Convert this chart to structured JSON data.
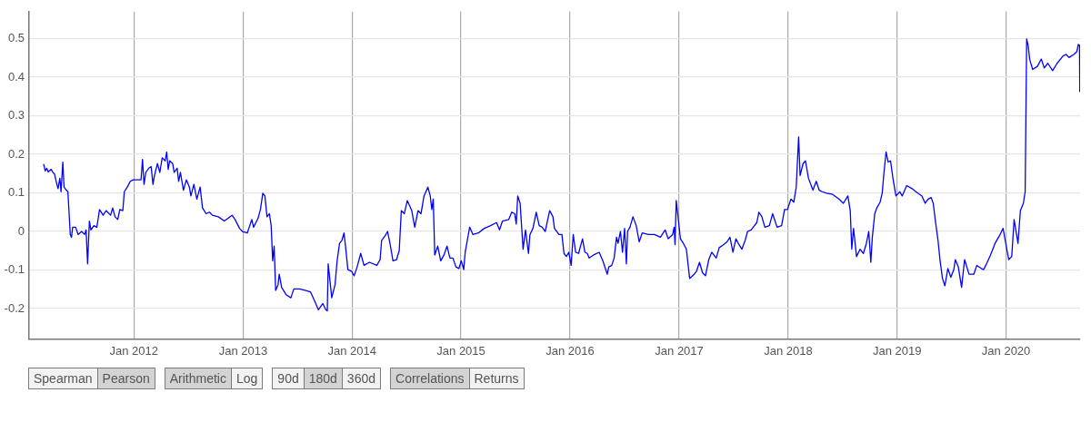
{
  "chart_data": {
    "type": "line",
    "x": [
      "2011-03-05",
      "2011-03-10",
      "2011-03-15",
      "2011-03-20",
      "2011-03-30",
      "2011-04-05",
      "2011-04-10",
      "2011-04-18",
      "2011-04-22",
      "2011-04-28",
      "2011-05-02",
      "2011-05-08",
      "2011-05-12",
      "2011-05-20",
      "2011-05-25",
      "2011-06-02",
      "2011-06-06",
      "2011-06-10",
      "2011-06-20",
      "2011-06-28",
      "2011-07-10",
      "2011-07-20",
      "2011-07-25",
      "2011-07-30",
      "2011-08-05",
      "2011-08-10",
      "2011-08-20",
      "2011-08-30",
      "2011-09-08",
      "2011-09-20",
      "2011-09-30",
      "2011-10-15",
      "2011-10-22",
      "2011-10-30",
      "2011-11-08",
      "2011-11-15",
      "2011-11-25",
      "2011-11-30",
      "2011-12-10",
      "2011-12-20",
      "2011-12-30",
      "2012-01-25",
      "2012-01-30",
      "2012-02-04",
      "2012-02-10",
      "2012-02-20",
      "2012-02-28",
      "2012-03-05",
      "2012-03-10",
      "2012-03-20",
      "2012-03-28",
      "2012-04-05",
      "2012-04-15",
      "2012-04-20",
      "2012-04-25",
      "2012-04-30",
      "2012-05-10",
      "2012-05-15",
      "2012-05-25",
      "2012-05-30",
      "2012-06-05",
      "2012-06-15",
      "2012-06-25",
      "2012-07-05",
      "2012-07-10",
      "2012-07-20",
      "2012-07-30",
      "2012-08-10",
      "2012-08-18",
      "2012-08-30",
      "2012-09-10",
      "2012-09-20",
      "2012-10-10",
      "2012-10-30",
      "2012-11-25",
      "2012-12-05",
      "2012-12-20",
      "2012-12-30",
      "2013-01-15",
      "2013-01-30",
      "2013-02-05",
      "2013-02-20",
      "2013-02-28",
      "2013-03-08",
      "2013-03-15",
      "2013-03-22",
      "2013-03-30",
      "2013-04-05",
      "2013-04-10",
      "2013-04-15",
      "2013-04-20",
      "2013-04-28",
      "2013-05-02",
      "2013-05-10",
      "2013-05-25",
      "2013-06-10",
      "2013-06-20",
      "2013-07-10",
      "2013-07-30",
      "2013-08-15",
      "2013-08-30",
      "2013-09-10",
      "2013-09-25",
      "2013-10-05",
      "2013-10-10",
      "2013-10-13",
      "2013-10-25",
      "2013-11-05",
      "2013-11-12",
      "2013-11-20",
      "2013-11-28",
      "2013-12-05",
      "2013-12-10",
      "2013-12-18",
      "2013-12-30",
      "2014-01-08",
      "2014-01-18",
      "2014-01-30",
      "2014-02-10",
      "2014-02-28",
      "2014-03-25",
      "2014-04-05",
      "2014-04-10",
      "2014-04-22",
      "2014-04-30",
      "2014-05-08",
      "2014-05-18",
      "2014-05-30",
      "2014-06-08",
      "2014-06-15",
      "2014-06-25",
      "2014-07-05",
      "2014-07-20",
      "2014-07-30",
      "2014-08-10",
      "2014-08-20",
      "2014-08-30",
      "2014-09-12",
      "2014-09-20",
      "2014-09-25",
      "2014-09-30",
      "2014-10-05",
      "2014-10-15",
      "2014-10-25",
      "2014-11-05",
      "2014-11-15",
      "2014-11-25",
      "2014-12-05",
      "2014-12-15",
      "2014-12-25",
      "2015-01-02",
      "2015-01-10",
      "2015-01-15",
      "2015-01-30",
      "2015-02-10",
      "2015-02-28",
      "2015-03-20",
      "2015-04-10",
      "2015-04-30",
      "2015-05-10",
      "2015-05-20",
      "2015-06-10",
      "2015-06-20",
      "2015-06-30",
      "2015-07-05",
      "2015-07-10",
      "2015-07-18",
      "2015-07-28",
      "2015-08-05",
      "2015-08-15",
      "2015-08-20",
      "2015-08-30",
      "2015-09-10",
      "2015-09-20",
      "2015-09-30",
      "2015-10-10",
      "2015-10-25",
      "2015-11-05",
      "2015-11-10",
      "2015-11-25",
      "2015-12-05",
      "2015-12-12",
      "2015-12-20",
      "2015-12-28",
      "2016-01-05",
      "2016-01-12",
      "2016-01-20",
      "2016-01-30",
      "2016-02-12",
      "2016-02-20",
      "2016-02-28",
      "2016-03-05",
      "2016-03-20",
      "2016-04-08",
      "2016-04-20",
      "2016-05-05",
      "2016-05-10",
      "2016-05-20",
      "2016-05-28",
      "2016-06-05",
      "2016-06-10",
      "2016-06-18",
      "2016-06-25",
      "2016-07-02",
      "2016-07-08",
      "2016-07-12",
      "2016-07-20",
      "2016-07-30",
      "2016-08-10",
      "2016-08-20",
      "2016-08-30",
      "2016-09-20",
      "2016-10-10",
      "2016-10-30",
      "2016-11-15",
      "2016-11-25",
      "2016-12-10",
      "2016-12-15",
      "2016-12-18",
      "2016-12-22",
      "2016-12-28",
      "2017-01-05",
      "2017-01-15",
      "2017-01-25",
      "2017-02-05",
      "2017-02-20",
      "2017-02-28",
      "2017-03-10",
      "2017-03-20",
      "2017-03-30",
      "2017-04-10",
      "2017-04-20",
      "2017-05-05",
      "2017-05-15",
      "2017-05-30",
      "2017-06-10",
      "2017-06-20",
      "2017-06-30",
      "2017-07-10",
      "2017-07-20",
      "2017-07-30",
      "2017-08-10",
      "2017-08-18",
      "2017-08-30",
      "2017-09-10",
      "2017-09-18",
      "2017-09-25",
      "2017-10-05",
      "2017-10-15",
      "2017-10-30",
      "2017-11-10",
      "2017-11-25",
      "2017-12-10",
      "2017-12-20",
      "2017-12-30",
      "2018-01-10",
      "2018-01-20",
      "2018-01-28",
      "2018-02-05",
      "2018-02-10",
      "2018-02-20",
      "2018-02-28",
      "2018-03-10",
      "2018-03-25",
      "2018-04-05",
      "2018-04-15",
      "2018-04-25",
      "2018-05-10",
      "2018-05-30",
      "2018-06-20",
      "2018-07-05",
      "2018-07-20",
      "2018-07-28",
      "2018-08-02",
      "2018-08-08",
      "2018-08-18",
      "2018-08-30",
      "2018-09-10",
      "2018-09-20",
      "2018-09-28",
      "2018-10-05",
      "2018-10-10",
      "2018-10-18",
      "2018-10-25",
      "2018-11-05",
      "2018-11-12",
      "2018-11-18",
      "2018-11-25",
      "2018-12-02",
      "2018-12-10",
      "2018-12-18",
      "2018-12-28",
      "2019-01-10",
      "2019-01-18",
      "2019-02-02",
      "2019-02-20",
      "2019-03-05",
      "2019-03-25",
      "2019-04-05",
      "2019-04-15",
      "2019-04-25",
      "2019-05-02",
      "2019-05-10",
      "2019-05-18",
      "2019-05-25",
      "2019-06-02",
      "2019-06-10",
      "2019-06-20",
      "2019-06-30",
      "2019-07-10",
      "2019-07-15",
      "2019-07-25",
      "2019-08-05",
      "2019-08-15",
      "2019-08-30",
      "2019-09-15",
      "2019-09-25",
      "2019-10-10",
      "2019-10-18",
      "2019-10-25",
      "2019-11-10",
      "2019-11-25",
      "2019-12-10",
      "2019-12-22",
      "2019-12-30",
      "2020-01-10",
      "2020-01-20",
      "2020-01-28",
      "2020-02-10",
      "2020-02-18",
      "2020-02-28",
      "2020-03-05",
      "2020-03-10",
      "2020-03-15",
      "2020-03-20",
      "2020-03-30",
      "2020-04-15",
      "2020-04-28",
      "2020-05-08",
      "2020-05-20",
      "2020-06-05",
      "2020-06-20",
      "2020-07-10",
      "2020-07-20",
      "2020-07-30",
      "2020-08-15",
      "2020-08-25",
      "2020-08-30",
      "2020-09-03",
      "2020-09-04"
    ],
    "values": [
      0.174,
      0.157,
      0.164,
      0.154,
      0.161,
      0.153,
      0.149,
      0.122,
      0.111,
      0.138,
      0.103,
      0.18,
      0.115,
      0.107,
      0.103,
      -0.008,
      -0.015,
      0.011,
      0.011,
      -0.008,
      0,
      -0.008,
      0.004,
      -0.084,
      0.027,
      0.004,
      0.015,
      0.011,
      0.057,
      0.042,
      0.054,
      0.042,
      0.061,
      0.038,
      0.031,
      0.057,
      0.054,
      0.103,
      0.115,
      0.13,
      0.134,
      0.134,
      0.187,
      0.122,
      0.153,
      0.164,
      0.168,
      0.122,
      0.145,
      0.176,
      0.153,
      0.191,
      0.183,
      0.206,
      0.161,
      0.183,
      0.176,
      0.153,
      0.164,
      0.13,
      0.153,
      0.107,
      0.134,
      0.115,
      0.092,
      0.122,
      0.084,
      0.115,
      0.061,
      0.046,
      0.05,
      0.042,
      0.038,
      0.027,
      0.042,
      0.031,
      0.008,
      0,
      -0.004,
      0.031,
      0.011,
      0.034,
      0.057,
      0.099,
      0.092,
      0.038,
      0.046,
      0.015,
      -0.076,
      -0.038,
      -0.153,
      -0.138,
      -0.111,
      -0.145,
      -0.164,
      -0.172,
      -0.149,
      -0.149,
      -0.153,
      -0.157,
      -0.183,
      -0.203,
      -0.187,
      -0.203,
      -0.206,
      -0.084,
      -0.172,
      -0.138,
      -0.076,
      -0.031,
      -0.023,
      -0.004,
      -0.038,
      -0.099,
      -0.103,
      -0.115,
      -0.092,
      -0.057,
      -0.088,
      -0.08,
      -0.088,
      -0.073,
      -0.023,
      -0.011,
      0,
      -0.031,
      -0.076,
      -0.073,
      -0.05,
      0.054,
      0.046,
      0.08,
      0.054,
      0.011,
      0.054,
      0.046,
      0.092,
      0.115,
      0.092,
      0.057,
      0.084,
      -0.061,
      -0.038,
      -0.076,
      -0.061,
      -0.038,
      -0.069,
      -0.069,
      -0.092,
      -0.096,
      -0.076,
      -0.099,
      -0.054,
      0.011,
      -0.008,
      -0.004,
      0.008,
      0.015,
      0.023,
      0.004,
      0.027,
      0.031,
      0.05,
      0.046,
      0.019,
      0.092,
      0.073,
      -0.046,
      0.004,
      -0.057,
      -0.008,
      0.008,
      0.05,
      0.015,
      0.011,
      0,
      0.054,
      0.038,
      0.008,
      -0.008,
      -0.008,
      -0.057,
      -0.065,
      -0.054,
      -0.088,
      -0.008,
      -0.054,
      -0.057,
      -0.019,
      -0.054,
      -0.057,
      -0.069,
      -0.061,
      -0.054,
      -0.076,
      -0.111,
      -0.092,
      -0.088,
      -0.069,
      -0.015,
      -0.031,
      0,
      -0.054,
      0.008,
      -0.084,
      0,
      0.011,
      0.038,
      0.015,
      -0.027,
      -0.004,
      -0.008,
      -0.008,
      -0.015,
      0.004,
      -0.019,
      -0.008,
      0.011,
      -0.034,
      0.08,
      0.038,
      -0.019,
      -0.031,
      -0.046,
      -0.122,
      -0.111,
      -0.103,
      -0.08,
      -0.107,
      -0.115,
      -0.073,
      -0.054,
      -0.069,
      -0.042,
      -0.034,
      -0.027,
      -0.015,
      -0.054,
      -0.019,
      -0.034,
      -0.046,
      -0.023,
      0,
      0.004,
      0.015,
      0.023,
      0.05,
      0.038,
      0.011,
      0.015,
      0.046,
      0.011,
      0.015,
      0.057,
      0.057,
      0.084,
      0.076,
      0.115,
      0.245,
      0.145,
      0.176,
      0.183,
      0.138,
      0.107,
      0.13,
      0.107,
      0.103,
      0.099,
      0.096,
      0.084,
      0.073,
      0.092,
      0.054,
      -0.046,
      0.008,
      -0.065,
      -0.046,
      -0.057,
      -0.031,
      0,
      -0.08,
      -0.015,
      0.046,
      0.061,
      0.076,
      0.099,
      0.153,
      0.206,
      0.18,
      0.183,
      0.138,
      0.092,
      0.103,
      0.092,
      0.119,
      0.111,
      0.103,
      0.092,
      0.073,
      0.084,
      0.088,
      0.073,
      0.023,
      -0.023,
      -0.076,
      -0.122,
      -0.141,
      -0.096,
      -0.119,
      -0.099,
      -0.073,
      -0.092,
      -0.145,
      -0.073,
      -0.111,
      -0.111,
      -0.088,
      -0.096,
      -0.099,
      -0.088,
      -0.061,
      -0.031,
      -0.011,
      0.008,
      -0.027,
      -0.073,
      -0.065,
      0.031,
      -0.031,
      0.054,
      0.073,
      0.103,
      0.499,
      0.482,
      0.447,
      0.42,
      0.428,
      0.447,
      0.424,
      0.436,
      0.417,
      0.436,
      0.455,
      0.459,
      0.451,
      0.459,
      0.466,
      0.485,
      0.482,
      0.363
    ],
    "color": "#0000ff",
    "xlim": [
      "2011-01-15",
      "2020-09-05"
    ],
    "xticks": [
      {
        "value": "2012-01",
        "label": "Jan 2012"
      },
      {
        "value": "2013-01",
        "label": "Jan 2013"
      },
      {
        "value": "2014-01",
        "label": "Jan 2014"
      },
      {
        "value": "2015-01",
        "label": "Jan 2015"
      },
      {
        "value": "2016-01",
        "label": "Jan 2016"
      },
      {
        "value": "2017-01",
        "label": "Jan 2017"
      },
      {
        "value": "2018-01",
        "label": "Jan 2018"
      },
      {
        "value": "2019-01",
        "label": "Jan 2019"
      },
      {
        "value": "2020-01",
        "label": "Jan 2020"
      }
    ],
    "ylim": [
      -0.28,
      0.57
    ],
    "yticks": [
      -0.2,
      -0.1,
      0,
      0.1,
      0.2,
      0.3,
      0.4,
      0.5
    ],
    "grid": true,
    "annotations": [
      "Spearman",
      "Pearson",
      "Arithmetic",
      "Log",
      "90d",
      "180d",
      "360d",
      "Correlations",
      "Returns"
    ]
  }
}
